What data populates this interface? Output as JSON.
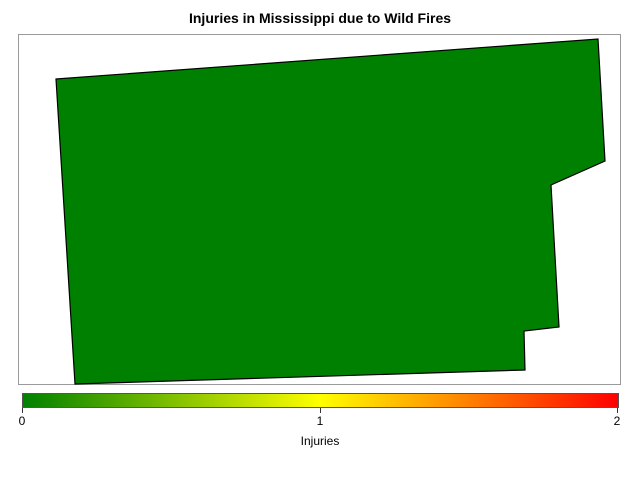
{
  "title": "Injuries in Mississippi due to Wild Fires",
  "region": {
    "value": 0,
    "fill_color": "#008000",
    "stroke_color": "#000000"
  },
  "legend": {
    "title": "Injuries",
    "ticks": [
      "0",
      "1",
      "2"
    ],
    "min": 0,
    "max": 2,
    "colors": [
      "#008000",
      "#ffff00",
      "#ff0000"
    ]
  }
}
